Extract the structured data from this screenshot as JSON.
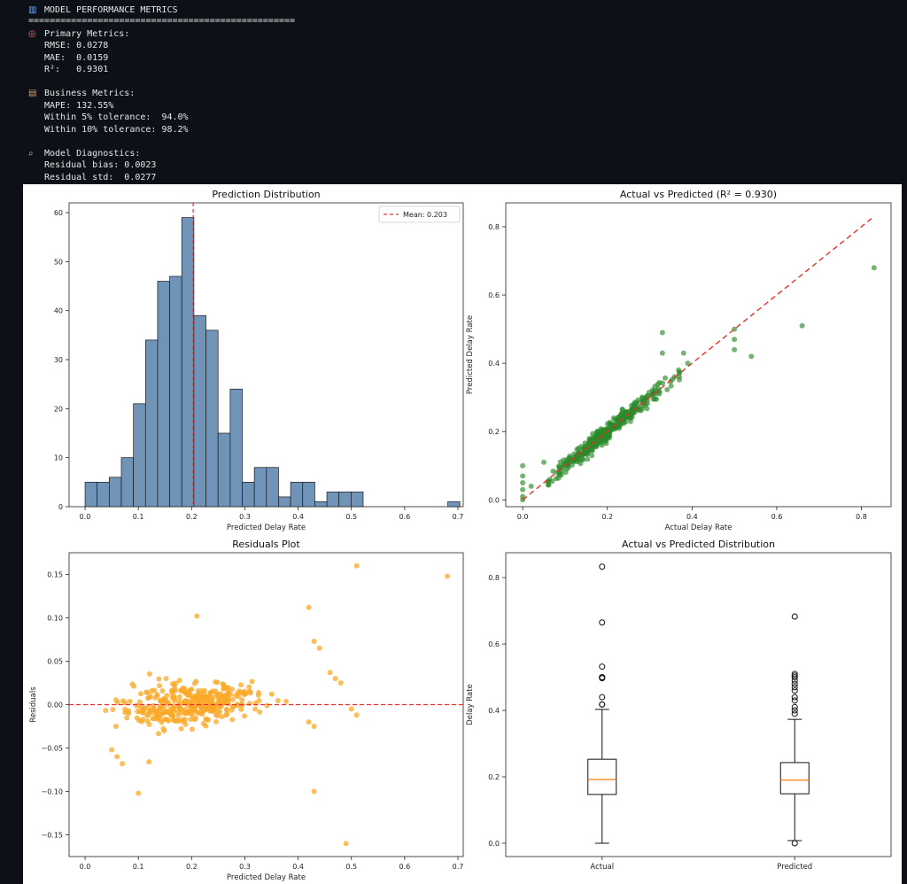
{
  "console": {
    "header_icon": "bar-chart-icon",
    "header": "MODEL PERFORMANCE METRICS",
    "separator": "==================================================",
    "primary_icon": "target-icon",
    "primary_title": "Primary Metrics:",
    "rmse": "RMSE: 0.0278",
    "mae": "MAE:  0.0159",
    "r2": "R²:   0.9301",
    "business_icon": "briefcase-icon",
    "business_title": "Business Metrics:",
    "mape": "MAPE: 132.55%",
    "tol5": "Within 5% tolerance:  94.0%",
    "tol10": "Within 10% tolerance: 98.2%",
    "diag_icon": "magnifier-icon",
    "diag_title": "Model Diagnostics:",
    "bias": "Residual bias: 0.0023",
    "std": "Residual std:  0.0277"
  },
  "colors": {
    "background": "#0d1117",
    "console_text": "#e6e6e6",
    "hist_fill": "#7093b8",
    "mean_line": "#e8302a",
    "scatter_green": "#2a8a2a",
    "scatter_orange": "#f9a825",
    "median_line": "#ff7f0e"
  },
  "chart_data": [
    {
      "type": "bar",
      "title": "Prediction Distribution",
      "xlabel": "Predicted Delay Rate",
      "ylabel": "",
      "xlim": [
        -0.03,
        0.71
      ],
      "ylim": [
        0,
        62
      ],
      "xticks": [
        "0.0",
        "0.1",
        "0.2",
        "0.3",
        "0.4",
        "0.5",
        "0.6",
        "0.7"
      ],
      "yticks": [
        "0",
        "10",
        "20",
        "30",
        "40",
        "50",
        "60"
      ],
      "bins": {
        "edges_start": 0.0,
        "bin_width": 0.0227,
        "counts": [
          5,
          5,
          6,
          10,
          21,
          34,
          46,
          47,
          59,
          39,
          36,
          15,
          24,
          5,
          8,
          8,
          2,
          5,
          5,
          1,
          3,
          3,
          3,
          0,
          0,
          0,
          0,
          0,
          0,
          0,
          1
        ]
      },
      "mean_line": {
        "value": 0.203,
        "label": "Mean: 0.203"
      },
      "legend": "top-right"
    },
    {
      "type": "scatter",
      "title": "Actual vs Predicted (R² = 0.930)",
      "xlabel": "Actual Delay Rate",
      "ylabel": "Predicted Delay Rate",
      "xlim": [
        -0.04,
        0.87
      ],
      "ylim": [
        -0.02,
        0.87
      ],
      "xticks": [
        "0.0",
        "0.2",
        "0.4",
        "0.6",
        "0.8"
      ],
      "yticks": [
        "0.0",
        "0.2",
        "0.4",
        "0.6",
        "0.8"
      ],
      "reference_line": {
        "from": [
          0.0,
          0.0
        ],
        "to": [
          0.83,
          0.83
        ]
      },
      "outliers": [
        [
          0.83,
          0.68
        ],
        [
          0.66,
          0.51
        ],
        [
          0.5,
          0.5
        ],
        [
          0.5,
          0.47
        ],
        [
          0.5,
          0.44
        ],
        [
          0.54,
          0.42
        ],
        [
          0.33,
          0.49
        ],
        [
          0.33,
          0.43
        ],
        [
          0.38,
          0.43
        ],
        [
          0.39,
          0.4
        ],
        [
          0.0,
          0.1
        ],
        [
          0.0,
          0.07
        ],
        [
          0.0,
          0.05
        ],
        [
          0.0,
          0.03
        ],
        [
          0.0,
          0.01
        ],
        [
          0.0,
          0.0
        ],
        [
          0.02,
          0.04
        ],
        [
          0.05,
          0.11
        ]
      ]
    },
    {
      "type": "scatter",
      "title": "Residuals Plot",
      "xlabel": "Predicted Delay Rate",
      "ylabel": "Residuals",
      "xlim": [
        -0.03,
        0.71
      ],
      "ylim": [
        -0.175,
        0.175
      ],
      "xticks": [
        "0.0",
        "0.1",
        "0.2",
        "0.3",
        "0.4",
        "0.5",
        "0.6",
        "0.7"
      ],
      "yticks": [
        "−0.15",
        "−0.10",
        "−0.05",
        "0.00",
        "0.05",
        "0.10",
        "0.15"
      ],
      "zero_line": 0.0,
      "outliers": [
        [
          0.51,
          0.16
        ],
        [
          0.68,
          0.148
        ],
        [
          0.42,
          0.112
        ],
        [
          0.21,
          0.102
        ],
        [
          0.43,
          0.073
        ],
        [
          0.1,
          -0.102
        ],
        [
          0.43,
          -0.1
        ],
        [
          0.49,
          -0.16
        ],
        [
          0.06,
          -0.06
        ],
        [
          0.07,
          -0.068
        ],
        [
          0.12,
          -0.066
        ],
        [
          0.05,
          -0.052
        ],
        [
          0.5,
          -0.005
        ],
        [
          0.51,
          -0.012
        ],
        [
          0.42,
          -0.02
        ],
        [
          0.43,
          -0.025
        ],
        [
          0.46,
          0.037
        ],
        [
          0.47,
          0.03
        ],
        [
          0.48,
          0.025
        ],
        [
          0.44,
          0.065
        ]
      ]
    },
    {
      "type": "box",
      "title": "Actual vs Predicted Distribution",
      "xlabel": "",
      "ylabel": "Delay Rate",
      "ylim": [
        -0.04,
        0.875
      ],
      "yticks": [
        "0.0",
        "0.2",
        "0.4",
        "0.6",
        "0.8"
      ],
      "categories": [
        "Actual",
        "Predicted"
      ],
      "boxes": [
        {
          "name": "Actual",
          "whisker_low": 0.0,
          "q1": 0.147,
          "median": 0.192,
          "q3": 0.253,
          "whisker_high": 0.403,
          "fliers": [
            0.833,
            0.665,
            0.532,
            0.5,
            0.5,
            0.497,
            0.44,
            0.418,
            0.418
          ]
        },
        {
          "name": "Predicted",
          "whisker_low": 0.008,
          "q1": 0.149,
          "median": 0.19,
          "q3": 0.243,
          "whisker_high": 0.373,
          "fliers": [
            0.683,
            0.51,
            0.505,
            0.5,
            0.49,
            0.48,
            0.47,
            0.46,
            0.44,
            0.43,
            0.41,
            0.4,
            0.39,
            0.0
          ]
        }
      ]
    }
  ]
}
